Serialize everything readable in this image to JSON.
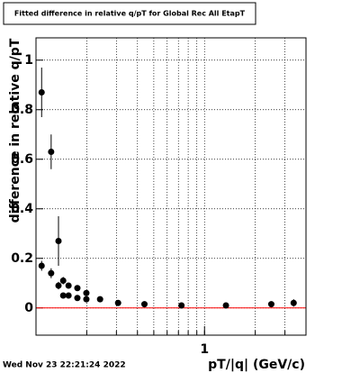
{
  "chart_data": {
    "type": "scatter",
    "title": "Fitted difference in relative q/pT for Global Rec All EtapT",
    "x_label": "pT/|q| (GeV/c)",
    "y_label": "difference in relative q/pT",
    "footer": "Wed Nov 23 22:21:24 2022",
    "log_x": true,
    "grid": true,
    "xlim": [
      0.1,
      4
    ],
    "xticks": [
      1
    ],
    "ylim": [
      -0.11,
      1.09
    ],
    "yticks": [
      0,
      0.2,
      0.4,
      0.6,
      0.8,
      1
    ],
    "hline": 0,
    "hline_color": "#ff0000",
    "series": [
      {
        "color": "#000000",
        "x": [
          0.108,
          0.123,
          0.136,
          0.108,
          0.123,
          0.136,
          0.145,
          0.145,
          0.156,
          0.156,
          0.176,
          0.176,
          0.199,
          0.199,
          0.24,
          0.307,
          0.44,
          0.73,
          1.34,
          2.49,
          3.38
        ],
        "values": [
          0.87,
          0.63,
          0.27,
          0.17,
          0.14,
          0.09,
          0.11,
          0.05,
          0.09,
          0.05,
          0.08,
          0.04,
          0.06,
          0.035,
          0.035,
          0.02,
          0.015,
          0.01,
          0.01,
          0.015,
          0.02
        ],
        "errors": [
          0.1,
          0.07,
          0.1,
          0.02,
          0.02,
          0.015,
          0.015,
          0.01,
          0.01,
          0.01,
          0.01,
          0.01,
          0.01,
          0.01,
          0.01,
          0.01,
          0.01,
          0.01,
          0.01,
          0.01,
          0.015
        ]
      }
    ]
  }
}
